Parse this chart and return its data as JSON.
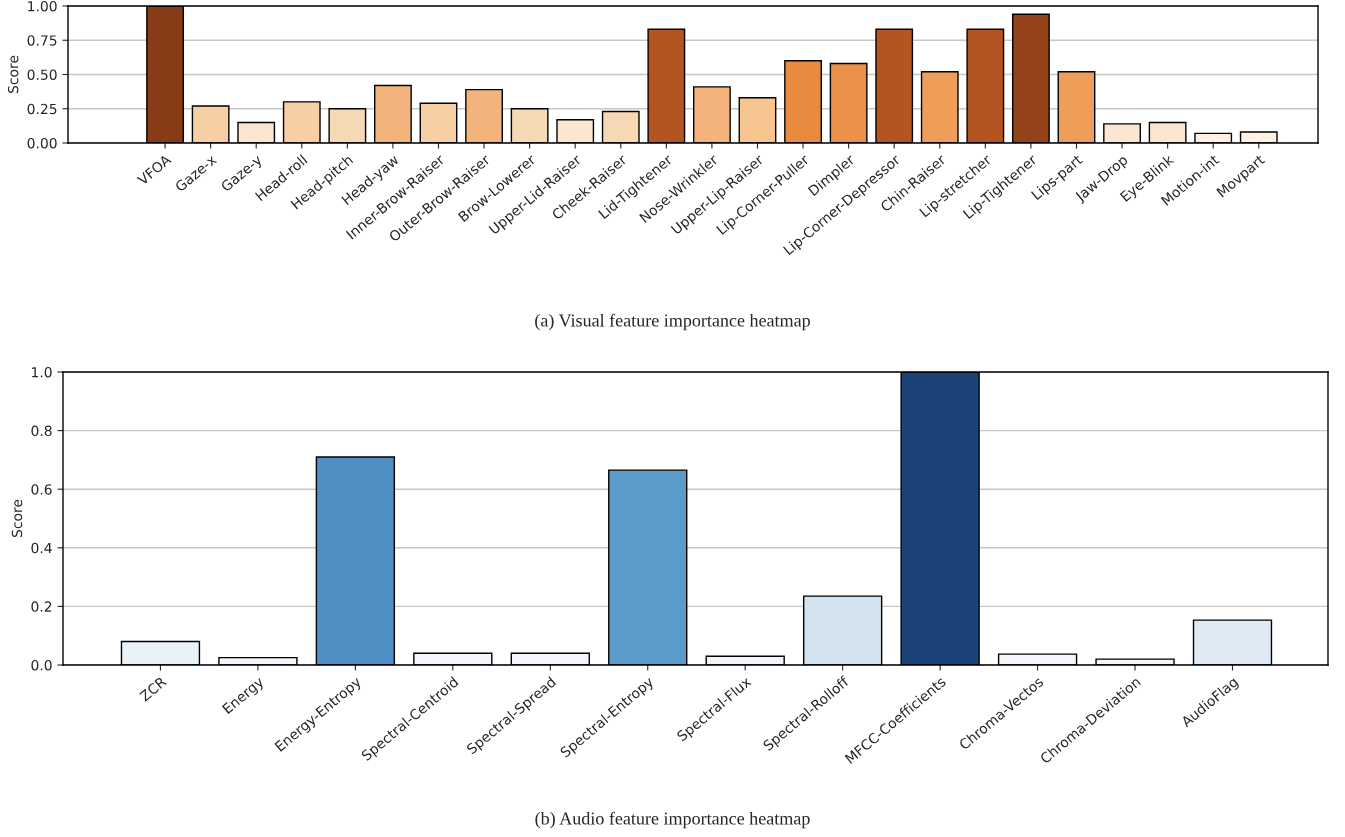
{
  "chart_data": [
    {
      "type": "bar",
      "ylabel": "Score",
      "annotations": [
        "(a) Visual feature importance heatmap"
      ],
      "categories": [
        "VFOA",
        "Gaze-x",
        "Gaze-y",
        "Head-roll",
        "Head-pitch",
        "Head-yaw",
        "Inner-Brow-Raiser",
        "Outer-Brow-Raiser",
        "Brow-Lowerer",
        "Upper-Lid-Raiser",
        "Cheek-Raiser",
        "Lid-Tightener",
        "Nose-Wrinkler",
        "Upper-Lip-Raiser",
        "Lip-Corner-Puller",
        "Dimpler",
        "Lip-Corner-Depressor",
        "Chin-Raiser",
        "Lip-stretcher",
        "Lip-Tightener",
        "Lips-part",
        "Jaw-Drop",
        "Eye-Blink",
        "Motion-int",
        "Movpart"
      ],
      "values": [
        1.0,
        0.27,
        0.15,
        0.3,
        0.25,
        0.42,
        0.29,
        0.39,
        0.25,
        0.17,
        0.23,
        0.83,
        0.41,
        0.33,
        0.6,
        0.58,
        0.83,
        0.52,
        0.83,
        0.94,
        0.52,
        0.14,
        0.15,
        0.07,
        0.08
      ],
      "colors": [
        "#873b17",
        "#f6cfa4",
        "#fbe6d2",
        "#f6cfa4",
        "#f7d8b4",
        "#f2b47c",
        "#f6cfa4",
        "#f2b47c",
        "#f7d8b4",
        "#fbe6d2",
        "#f7d8b4",
        "#b35521",
        "#f2b47c",
        "#f6c590",
        "#e88b3e",
        "#eb914a",
        "#b35521",
        "#ef9e59",
        "#b35521",
        "#94421a",
        "#ef9e59",
        "#fbe6d2",
        "#fbe6d2",
        "#fdf0e4",
        "#fdf0e4"
      ],
      "ylim": [
        0,
        1.0
      ],
      "yticks": [
        {
          "value": 0,
          "label": "0.00"
        },
        {
          "value": 0.25,
          "label": "0.25"
        },
        {
          "value": 0.5,
          "label": "0.50"
        },
        {
          "value": 0.75,
          "label": "0.75"
        },
        {
          "value": 1.0,
          "label": "1.00"
        }
      ],
      "grid": "y",
      "legend": false
    },
    {
      "type": "bar",
      "ylabel": "Score",
      "annotations": [
        "(b) Audio feature importance heatmap"
      ],
      "categories": [
        "ZCR",
        "Energy",
        "Energy-Entropy",
        "Spectral-Centroid",
        "Spectral-Spread",
        "Spectral-Entropy",
        "Spectral-Flux",
        "Spectral-Rolloff",
        "MFCC-Coefficients",
        "Chroma-Vectos",
        "Chroma-Deviation",
        "AudioFlag"
      ],
      "values": [
        0.08,
        0.025,
        0.71,
        0.04,
        0.04,
        0.665,
        0.03,
        0.235,
        1.0,
        0.037,
        0.02,
        0.153
      ],
      "colors": [
        "#e9f1f9",
        "#f2f6fb",
        "#4f8fc3",
        "#f2f6fb",
        "#f2f6fb",
        "#5b9bca",
        "#f2f6fb",
        "#d4e3f0",
        "#1b4279",
        "#f2f6fb",
        "#f2f6fb",
        "#e0eaf5"
      ],
      "ylim": [
        0,
        1.0
      ],
      "yticks": [
        {
          "value": 0,
          "label": "0.0"
        },
        {
          "value": 0.2,
          "label": "0.2"
        },
        {
          "value": 0.4,
          "label": "0.4"
        },
        {
          "value": 0.6,
          "label": "0.6"
        },
        {
          "value": 0.8,
          "label": "0.8"
        },
        {
          "value": 1.0,
          "label": "1.0"
        }
      ],
      "grid": "y",
      "legend": false
    }
  ]
}
